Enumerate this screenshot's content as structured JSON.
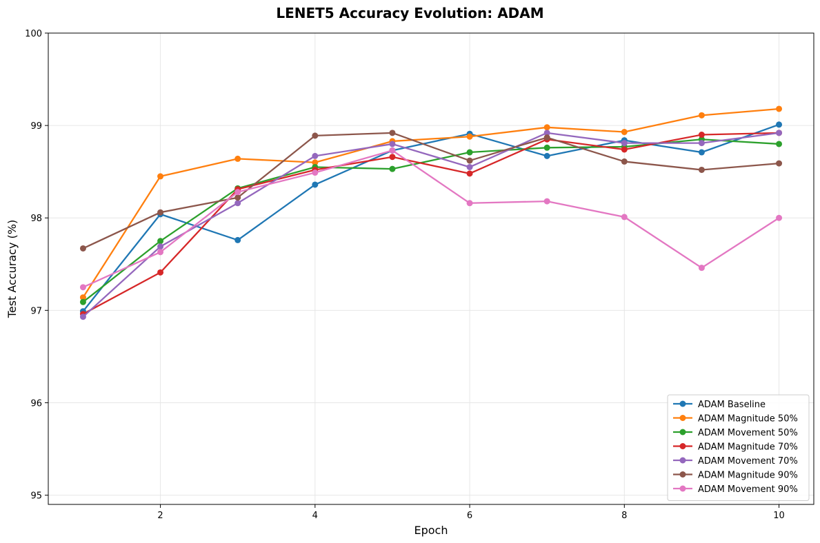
{
  "chart_data": {
    "type": "line",
    "title": "LENET5 Accuracy Evolution: ADAM",
    "xlabel": "Epoch",
    "ylabel": "Test Accuracy (%)",
    "xlim": [
      0.55,
      10.45
    ],
    "ylim": [
      94.9,
      100
    ],
    "xticks": [
      2,
      4,
      6,
      8,
      10
    ],
    "yticks": [
      95,
      96,
      97,
      98,
      99,
      100
    ],
    "grid": true,
    "legend_position": "lower-right",
    "x": [
      1,
      2,
      3,
      4,
      5,
      6,
      7,
      8,
      9,
      10
    ],
    "series": [
      {
        "name": "ADAM Baseline",
        "color": "#1f77b4",
        "values": [
          96.99,
          98.04,
          97.76,
          98.36,
          98.73,
          98.91,
          98.67,
          98.84,
          98.71,
          99.01
        ]
      },
      {
        "name": "ADAM Magnitude 50%",
        "color": "#ff7f0e",
        "values": [
          97.14,
          98.45,
          98.64,
          98.6,
          98.83,
          98.88,
          98.98,
          98.93,
          99.11,
          99.18
        ]
      },
      {
        "name": "ADAM Movement 50%",
        "color": "#2ca02c",
        "values": [
          97.09,
          97.75,
          98.32,
          98.55,
          98.53,
          98.71,
          98.76,
          98.77,
          98.85,
          98.8
        ]
      },
      {
        "name": "ADAM Magnitude 70%",
        "color": "#d62728",
        "values": [
          96.96,
          97.41,
          98.31,
          98.52,
          98.66,
          98.48,
          98.85,
          98.74,
          98.9,
          98.92
        ]
      },
      {
        "name": "ADAM Movement 70%",
        "color": "#9467bd",
        "values": [
          96.93,
          97.69,
          98.16,
          98.67,
          98.8,
          98.55,
          98.92,
          98.81,
          98.81,
          98.92
        ]
      },
      {
        "name": "ADAM Magnitude 90%",
        "color": "#8c564b",
        "values": [
          97.67,
          98.06,
          98.22,
          98.89,
          98.92,
          98.62,
          98.87,
          98.61,
          98.52,
          98.59
        ]
      },
      {
        "name": "ADAM Movement 90%",
        "color": "#e377c2",
        "values": [
          97.25,
          97.63,
          98.28,
          98.49,
          98.73,
          98.16,
          98.18,
          98.01,
          97.46,
          98.0
        ]
      }
    ]
  }
}
